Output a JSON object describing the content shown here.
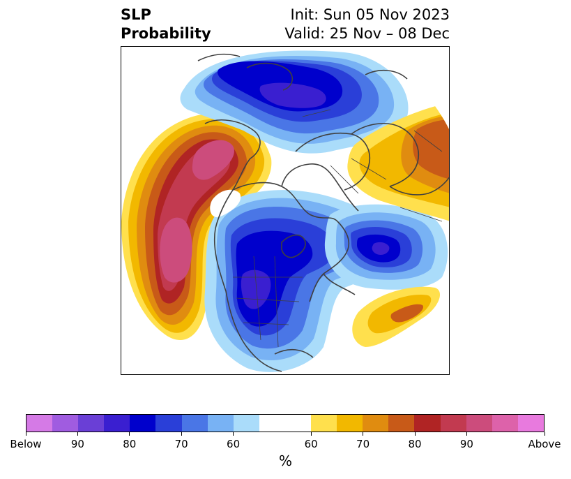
{
  "title": {
    "left_lines": [
      "SLP",
      "Probability"
    ],
    "right_lines": [
      "Init: Sun 05 Nov 2023",
      "Valid: 25 Nov – 08 Dec"
    ]
  },
  "colorbar": {
    "colors": [
      "#d57ae6",
      "#a05ce0",
      "#6a3fd6",
      "#3a1fd0",
      "#0000cc",
      "#2a3fd8",
      "#4a76e6",
      "#78b2f4",
      "#aadcfa",
      "#ffffff",
      "#ffffff",
      "#ffe04d",
      "#f2b800",
      "#e08c10",
      "#c85a18",
      "#b02424",
      "#c23a50",
      "#cc4c7c",
      "#dd62aa",
      "#e87ade"
    ],
    "tick_labels": [
      "Below",
      "90",
      "80",
      "70",
      "60",
      "60",
      "70",
      "80",
      "90",
      "Above"
    ],
    "unit": "%"
  },
  "map": {
    "palette": {
      "below_95": "#2200b8",
      "below_90": "#3a1fd0",
      "below_80": "#0000cc",
      "below_75": "#2a3fd8",
      "below_70": "#4a76e6",
      "below_65": "#78b2f4",
      "below_60": "#aadcfa",
      "above_60": "#ffe04d",
      "above_65": "#f2b800",
      "above_70": "#e08c10",
      "above_75": "#c85a18",
      "above_80": "#b02424",
      "above_85": "#c23a50",
      "above_90": "#cc4c7c",
      "coast": "#404040"
    }
  }
}
